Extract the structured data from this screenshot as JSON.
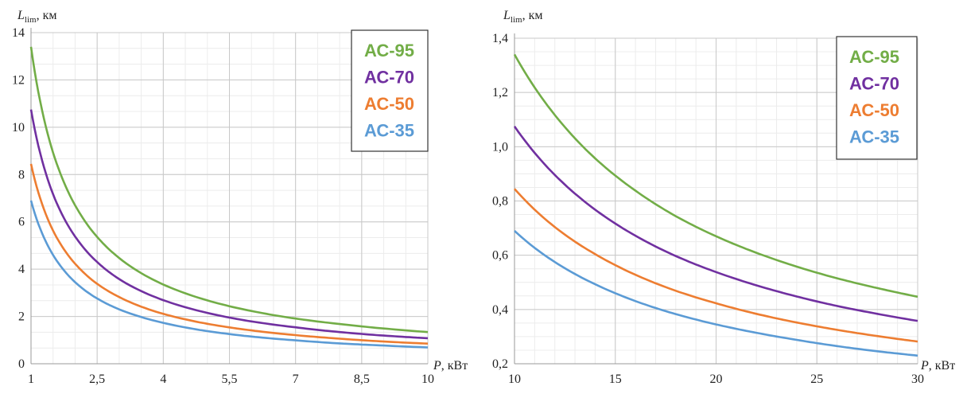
{
  "chart_data": [
    {
      "type": "line",
      "ylabel": {
        "symbol": "L",
        "subscript": "lim",
        "unit": ", км"
      },
      "xlabel": {
        "symbol": "P",
        "unit": ", кВт"
      },
      "xlim": [
        1,
        10
      ],
      "ylim": [
        0,
        14
      ],
      "x_ticks": [
        "1",
        "2,5",
        "4",
        "5,5",
        "7",
        "8,5",
        "10"
      ],
      "y_ticks": [
        "0",
        "2",
        "4",
        "6",
        "8",
        "10",
        "12",
        "14"
      ],
      "grid": true,
      "legend_position": "top-right",
      "series": [
        {
          "name": "АС-95",
          "color": "#72ad47",
          "x": [
            1,
            1.5,
            2,
            2.5,
            3,
            4,
            5,
            6,
            7,
            8,
            9,
            10
          ],
          "y": [
            13.4,
            8.93,
            6.7,
            5.36,
            4.47,
            3.35,
            2.68,
            2.23,
            1.91,
            1.68,
            1.49,
            1.34
          ]
        },
        {
          "name": "АС-70",
          "color": "#7030a0",
          "x": [
            1,
            1.5,
            2,
            2.5,
            3,
            4,
            5,
            6,
            7,
            8,
            9,
            10
          ],
          "y": [
            10.75,
            7.17,
            5.38,
            4.3,
            3.58,
            2.69,
            2.15,
            1.79,
            1.54,
            1.34,
            1.19,
            1.08
          ]
        },
        {
          "name": "АС-50",
          "color": "#ed7d31",
          "x": [
            1,
            1.5,
            2,
            2.5,
            3,
            4,
            5,
            6,
            7,
            8,
            9,
            10
          ],
          "y": [
            8.45,
            5.63,
            4.23,
            3.38,
            2.82,
            2.11,
            1.69,
            1.41,
            1.21,
            1.06,
            0.94,
            0.85
          ]
        },
        {
          "name": "АС-35",
          "color": "#5b9bd5",
          "x": [
            1,
            1.5,
            2,
            2.5,
            3,
            4,
            5,
            6,
            7,
            8,
            9,
            10
          ],
          "y": [
            6.9,
            4.6,
            3.45,
            2.76,
            2.3,
            1.73,
            1.38,
            1.15,
            0.99,
            0.86,
            0.77,
            0.69
          ]
        }
      ]
    },
    {
      "type": "line",
      "ylabel": {
        "symbol": "L",
        "subscript": "lim",
        "unit": ", км"
      },
      "xlabel": {
        "symbol": "P",
        "unit": ", кВт"
      },
      "xlim": [
        10,
        30
      ],
      "ylim": [
        0.2,
        1.4
      ],
      "x_ticks": [
        "10",
        "15",
        "20",
        "25",
        "30"
      ],
      "y_ticks": [
        "0,2",
        "0,4",
        "0,6",
        "0,8",
        "1,0",
        "1,2",
        "1,4"
      ],
      "grid": true,
      "legend_position": "top-right",
      "series": [
        {
          "name": "АС-95",
          "color": "#72ad47",
          "x": [
            10,
            12,
            14,
            16,
            18,
            20,
            22,
            24,
            26,
            28,
            30
          ],
          "y": [
            1.34,
            1.117,
            0.957,
            0.838,
            0.744,
            0.67,
            0.609,
            0.558,
            0.515,
            0.479,
            0.447
          ]
        },
        {
          "name": "АС-70",
          "color": "#7030a0",
          "x": [
            10,
            12,
            14,
            16,
            18,
            20,
            22,
            24,
            26,
            28,
            30
          ],
          "y": [
            1.075,
            0.896,
            0.768,
            0.672,
            0.597,
            0.538,
            0.489,
            0.448,
            0.413,
            0.384,
            0.358
          ]
        },
        {
          "name": "АС-50",
          "color": "#ed7d31",
          "x": [
            10,
            12,
            14,
            16,
            18,
            20,
            22,
            24,
            26,
            28,
            30
          ],
          "y": [
            0.845,
            0.704,
            0.604,
            0.528,
            0.469,
            0.423,
            0.384,
            0.352,
            0.325,
            0.302,
            0.282
          ]
        },
        {
          "name": "АС-35",
          "color": "#5b9bd5",
          "x": [
            10,
            12,
            14,
            16,
            18,
            20,
            22,
            24,
            26,
            28,
            30
          ],
          "y": [
            0.69,
            0.575,
            0.493,
            0.431,
            0.383,
            0.345,
            0.314,
            0.288,
            0.265,
            0.246,
            0.23
          ]
        }
      ]
    }
  ]
}
